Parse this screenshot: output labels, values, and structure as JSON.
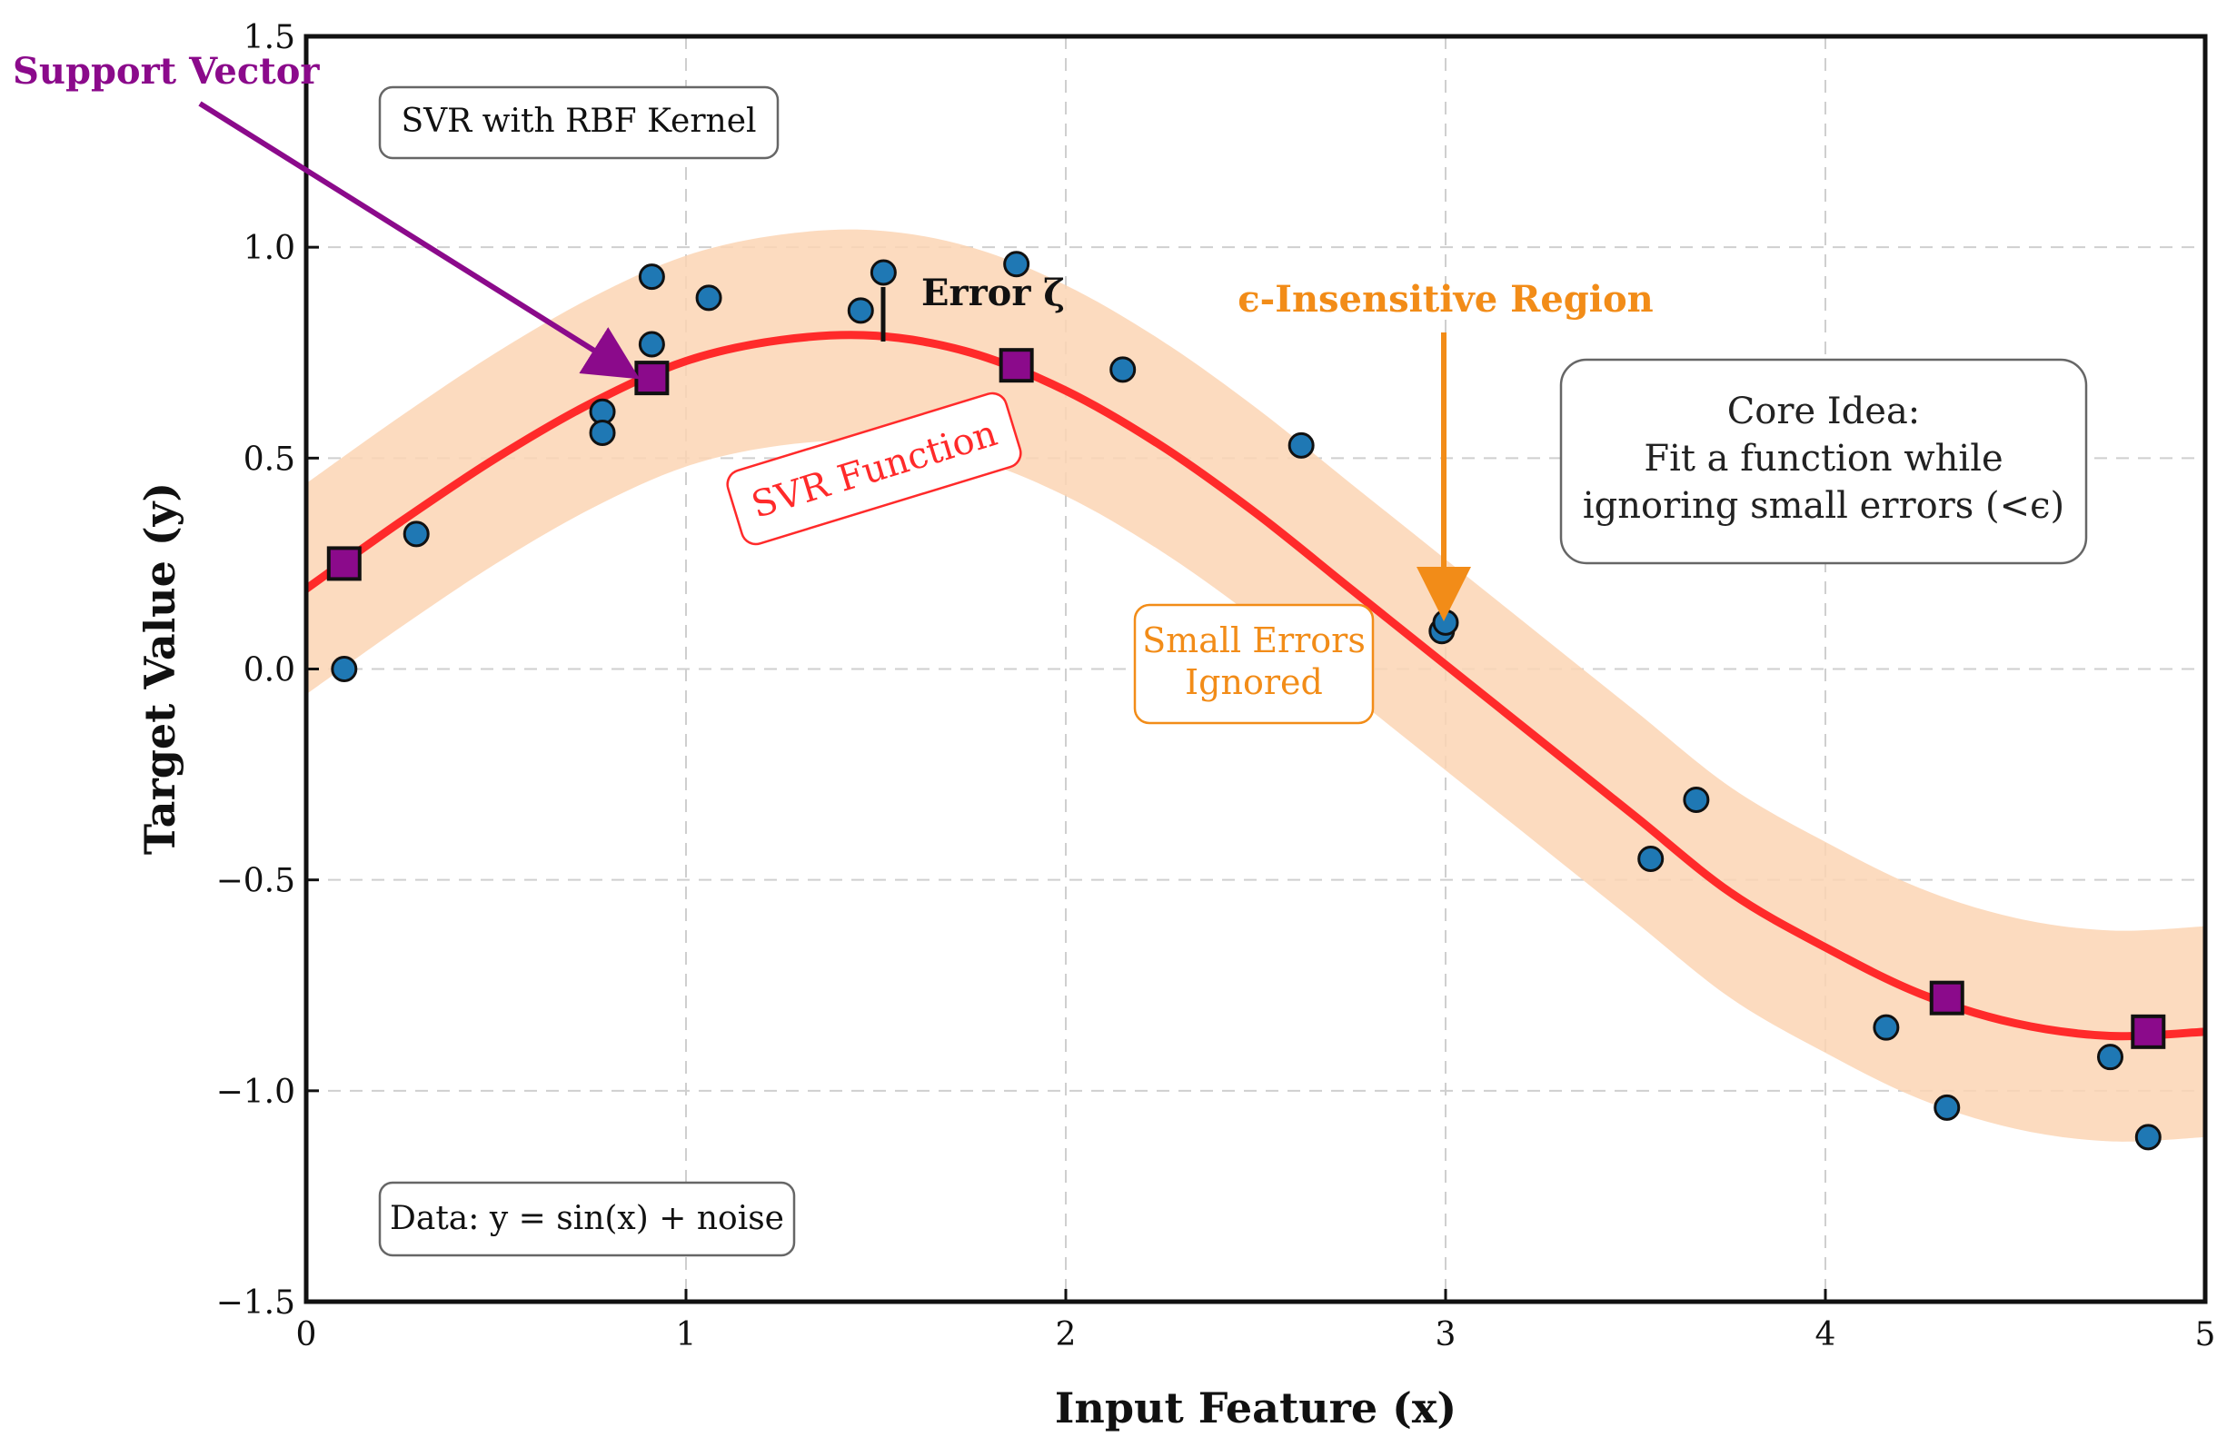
{
  "chart_data": {
    "type": "scatter",
    "title": "",
    "xlabel": "Input Feature (x)",
    "ylabel": "Target Value (y)",
    "xlim": [
      0,
      5
    ],
    "ylim": [
      -1.5,
      1.5
    ],
    "grid": true,
    "x_ticks": [
      0,
      1,
      2,
      3,
      4,
      5
    ],
    "x_tick_labels": [
      "0",
      "1",
      "2",
      "3",
      "4",
      "5"
    ],
    "y_ticks": [
      1.5,
      1.0,
      0.5,
      0.0,
      -0.5,
      -1.0,
      -1.5
    ],
    "y_tick_labels": [
      "1.5",
      "1.0",
      "0.5",
      "0.0",
      "−0.5",
      "−1.0",
      "−1.5"
    ],
    "epsilon": 0.25,
    "svr_function": {
      "name": "SVR Function",
      "color": "#ff2a2a",
      "x": [
        0,
        0.25,
        0.5,
        0.75,
        1.0,
        1.25,
        1.5,
        1.75,
        2.0,
        2.25,
        2.5,
        2.75,
        3.0,
        3.25,
        3.5,
        3.75,
        4.0,
        4.25,
        4.5,
        4.75,
        5.0
      ],
      "y": [
        0.19,
        0.35,
        0.5,
        0.63,
        0.73,
        0.78,
        0.79,
        0.75,
        0.66,
        0.53,
        0.37,
        0.19,
        0.01,
        -0.17,
        -0.35,
        -0.53,
        -0.66,
        -0.77,
        -0.84,
        -0.87,
        -0.86
      ]
    },
    "data_points": {
      "name": "Data: y = sin(x) + noise",
      "color": "#1f78b4",
      "x": [
        0.1,
        0.29,
        0.78,
        0.78,
        0.91,
        0.91,
        1.06,
        1.46,
        1.52,
        1.87,
        2.15,
        2.62,
        2.99,
        3.0,
        3.54,
        3.66,
        4.16,
        4.32,
        4.75,
        4.85
      ],
      "y": [
        0.0,
        0.32,
        0.61,
        0.56,
        0.93,
        0.77,
        0.88,
        0.85,
        0.94,
        0.96,
        0.71,
        0.53,
        0.09,
        0.11,
        -0.45,
        -0.31,
        -0.85,
        -1.04,
        -0.92,
        -1.11
      ]
    },
    "support_vectors": {
      "name": "Support Vector",
      "color": "#8b0a8b",
      "x": [
        0.1,
        0.91,
        1.87,
        4.32,
        4.85
      ],
      "y": [
        0.25,
        0.69,
        0.72,
        -0.78,
        -0.86
      ]
    },
    "band_color": "#fcd5b4",
    "annotations": {
      "support_vector_label": "Support Vector",
      "kernel_box": "SVR with RBF Kernel",
      "error_label": "Error ζ",
      "eps_region_label": "ϵ-Insensitive Region",
      "core_idea_lines": [
        "Core Idea:",
        "Fit a function while",
        "ignoring small errors (<ϵ)"
      ],
      "svr_function_label": "SVR Function",
      "small_errors_lines": [
        "Small Errors",
        "Ignored"
      ],
      "data_box": "Data: y = sin(x) + noise",
      "purple": "#8b0a8b",
      "orange": "#f28c18",
      "red": "#ff2a2a"
    }
  }
}
